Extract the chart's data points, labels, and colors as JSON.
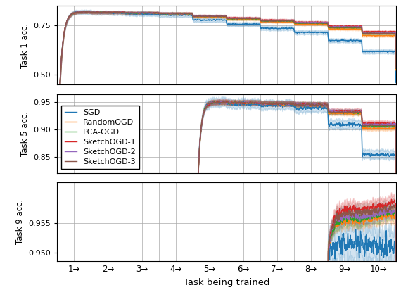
{
  "methods": [
    "SGD",
    "RandomOGD",
    "PCA-OGD",
    "SketchOGD-1",
    "SketchOGD-2",
    "SketchOGD-3"
  ],
  "colors": [
    "#1f77b4",
    "#ff7f0e",
    "#2ca02c",
    "#d62728",
    "#9467bd",
    "#8c564b"
  ],
  "n_tasks": 10,
  "steps_per_task": 200,
  "task_labels": [
    "1→",
    "2→",
    "3→",
    "4→",
    "5→",
    "6→",
    "7→",
    "8→",
    "9→",
    "10→"
  ],
  "ylabel1": "Task 1 acc.",
  "ylabel2": "Task 5 acc.",
  "ylabel3": "Task 9 acc.",
  "xlabel": "Task being trained",
  "ylim1": [
    0.45,
    0.85
  ],
  "ylim2": [
    0.82,
    0.965
  ],
  "ylim3": [
    0.9485,
    0.962
  ],
  "yticks1": [
    0.5,
    0.75
  ],
  "yticks2": [
    0.85,
    0.9,
    0.95
  ],
  "yticks3": [
    0.95,
    0.955
  ]
}
